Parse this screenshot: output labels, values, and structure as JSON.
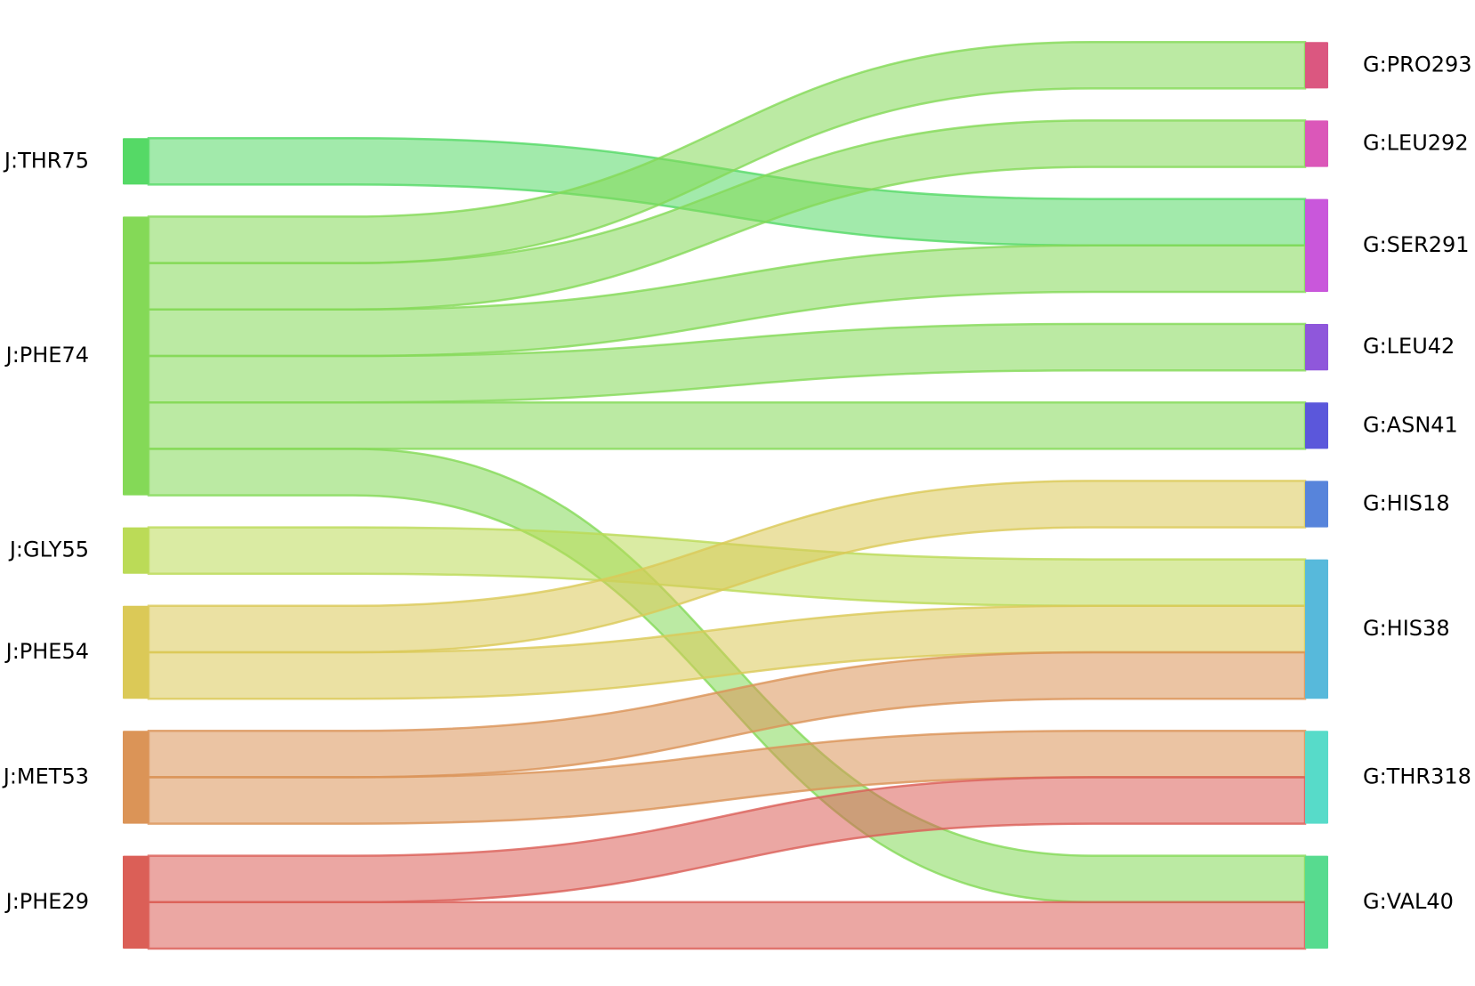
{
  "chart_data": {
    "type": "sankey",
    "nodes": [
      {
        "name": "J:THR75",
        "color": "#55d966"
      },
      {
        "name": "J:PHE74",
        "color": "#84d957"
      },
      {
        "name": "J:GLY55",
        "color": "#bbdb57"
      },
      {
        "name": "J:PHE54",
        "color": "#dbc957"
      },
      {
        "name": "J:MET53",
        "color": "#db9457"
      },
      {
        "name": "J:PHE29",
        "color": "#db5f57"
      },
      {
        "name": "G:PRO293",
        "color": "#db5780"
      },
      {
        "name": "G:LEU292",
        "color": "#db57b9"
      },
      {
        "name": "G:SER291",
        "color": "#c957db"
      },
      {
        "name": "G:LEU42",
        "color": "#8f57db"
      },
      {
        "name": "G:ASN41",
        "color": "#5b57db"
      },
      {
        "name": "G:HIS18",
        "color": "#5784db"
      },
      {
        "name": "G:HIS38",
        "color": "#57b9db"
      },
      {
        "name": "G:THR318",
        "color": "#57dbc9"
      },
      {
        "name": "G:VAL40",
        "color": "#57db8f"
      }
    ],
    "links": [
      {
        "source": "J:THR75",
        "target": "G:SER291",
        "value": 1
      },
      {
        "source": "J:PHE74",
        "target": "G:PRO293",
        "value": 1
      },
      {
        "source": "J:PHE74",
        "target": "G:LEU292",
        "value": 1
      },
      {
        "source": "J:PHE74",
        "target": "G:SER291",
        "value": 1
      },
      {
        "source": "J:PHE74",
        "target": "G:LEU42",
        "value": 1
      },
      {
        "source": "J:PHE74",
        "target": "G:ASN41",
        "value": 1
      },
      {
        "source": "J:PHE74",
        "target": "G:VAL40",
        "value": 1
      },
      {
        "source": "J:GLY55",
        "target": "G:HIS38",
        "value": 1
      },
      {
        "source": "J:PHE54",
        "target": "G:HIS18",
        "value": 1
      },
      {
        "source": "J:PHE54",
        "target": "G:HIS38",
        "value": 1
      },
      {
        "source": "J:MET53",
        "target": "G:HIS38",
        "value": 1
      },
      {
        "source": "J:MET53",
        "target": "G:THR318",
        "value": 1
      },
      {
        "source": "J:PHE29",
        "target": "G:THR318",
        "value": 1
      },
      {
        "source": "J:PHE29",
        "target": "G:VAL40",
        "value": 1
      }
    ]
  }
}
